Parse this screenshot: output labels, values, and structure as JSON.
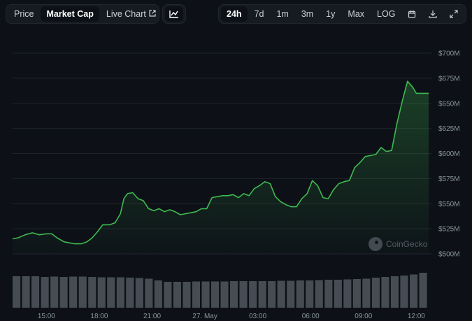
{
  "toolbar": {
    "metric_tabs": [
      {
        "label": "Price",
        "active": false
      },
      {
        "label": "Market Cap",
        "active": true
      },
      {
        "label": "Live Chart",
        "active": false
      }
    ],
    "chart_type_icon": "line-chart-icon",
    "ranges": [
      {
        "label": "24h",
        "active": true
      },
      {
        "label": "7d",
        "active": false
      },
      {
        "label": "1m",
        "active": false
      },
      {
        "label": "3m",
        "active": false
      },
      {
        "label": "1y",
        "active": false
      },
      {
        "label": "Max",
        "active": false
      },
      {
        "label": "LOG",
        "active": false
      }
    ],
    "action_icons": [
      "calendar-icon",
      "download-icon",
      "expand-icon"
    ]
  },
  "watermark": "CoinGecko",
  "colors": {
    "line": "#3fb950",
    "background": "#0d1117",
    "volume": "#8b949e"
  },
  "chart_data": {
    "type": "area",
    "y_ticks": [
      "$500M",
      "$525M",
      "$550M",
      "$575M",
      "$600M",
      "$625M",
      "$650M",
      "$675M",
      "$700M"
    ],
    "ylim": [
      500,
      700
    ],
    "x_ticks": [
      "15:00",
      "18:00",
      "21:00",
      "27. May",
      "03:00",
      "06:00",
      "09:00",
      "12:00"
    ],
    "x_tick_hours": [
      15,
      18,
      21,
      24,
      27,
      30,
      33,
      36
    ],
    "xlim": [
      13.08,
      36.7
    ],
    "grid": true,
    "series": [
      {
        "values_unit": "USD millions",
        "x": [
          13.08,
          13.4,
          13.8,
          14.2,
          14.6,
          15.0,
          15.3,
          15.6,
          16.0,
          16.3,
          16.6,
          17.0,
          17.3,
          17.6,
          17.9,
          18.2,
          18.6,
          18.9,
          19.2,
          19.4,
          19.6,
          19.9,
          20.2,
          20.5,
          20.8,
          21.1,
          21.4,
          21.7,
          22.0,
          22.3,
          22.6,
          22.9,
          23.2,
          23.5,
          23.8,
          24.1,
          24.4,
          24.7,
          25.0,
          25.3,
          25.6,
          25.9,
          26.2,
          26.5,
          26.8,
          27.1,
          27.4,
          27.7,
          28.0,
          28.3,
          28.6,
          28.9,
          29.2,
          29.5,
          29.8,
          30.1,
          30.4,
          30.7,
          31.0,
          31.3,
          31.6,
          31.9,
          32.2,
          32.5,
          32.8,
          33.1,
          33.4,
          33.7,
          34.0,
          34.3,
          34.6,
          34.9,
          35.2,
          35.5,
          35.8,
          36.0,
          36.2,
          36.4,
          36.55,
          36.7
        ],
        "values": [
          515,
          516,
          519,
          521,
          519,
          520,
          520,
          516,
          512,
          511,
          510,
          510,
          512,
          516,
          522,
          529,
          529,
          531,
          540,
          555,
          560,
          561,
          555,
          553,
          545,
          543,
          545,
          542,
          544,
          542,
          539,
          540,
          541,
          542,
          545,
          545,
          556,
          557,
          558,
          558,
          559,
          556,
          560,
          558,
          565,
          568,
          572,
          570,
          557,
          552,
          549,
          547,
          547,
          555,
          560,
          573,
          568,
          556,
          555,
          564,
          570,
          572,
          573,
          586,
          591,
          597,
          598,
          599,
          606,
          602,
          603,
          630,
          652,
          672,
          666,
          660,
          660,
          660,
          660,
          660
        ],
        "volume_relative": [
          0.9,
          0.9,
          0.9,
          0.88,
          0.89,
          0.88,
          0.89,
          0.89,
          0.88,
          0.87,
          0.87,
          0.87,
          0.86,
          0.85,
          0.83,
          0.78,
          0.74,
          0.74,
          0.74,
          0.75,
          0.75,
          0.75,
          0.75,
          0.76,
          0.76,
          0.76,
          0.76,
          0.76,
          0.77,
          0.77,
          0.78,
          0.78,
          0.79,
          0.8,
          0.8,
          0.81,
          0.82,
          0.83,
          0.86,
          0.88,
          0.9,
          0.92,
          0.95,
          1.0
        ]
      }
    ]
  }
}
